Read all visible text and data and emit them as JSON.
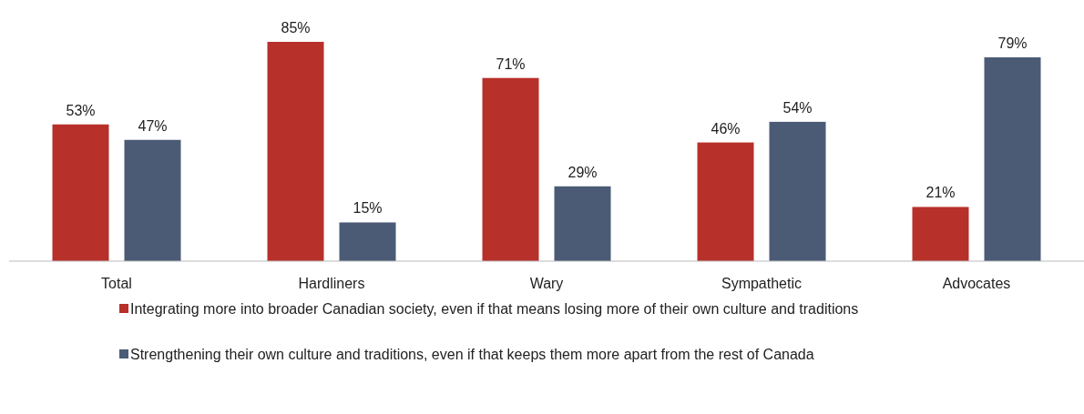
{
  "chart_data": {
    "type": "bar",
    "categories": [
      "Total",
      "Hardliners",
      "Wary",
      "Sympathetic",
      "Advocates"
    ],
    "series": [
      {
        "name": "Integrating more into broader Canadian society, even if that means losing more of their own culture and traditions",
        "color": "#b8302a",
        "values": [
          53,
          85,
          71,
          46,
          21
        ],
        "value_labels": [
          "53%",
          "85%",
          "71%",
          "46%",
          "21%"
        ]
      },
      {
        "name": "Strengthening their own culture and traditions, even if that keeps them more apart from the rest of Canada",
        "color": "#4b5b76",
        "values": [
          47,
          15,
          29,
          54,
          79
        ],
        "value_labels": [
          "47%",
          "15%",
          "29%",
          "54%",
          "79%"
        ]
      }
    ],
    "legend": "bottom"
  }
}
